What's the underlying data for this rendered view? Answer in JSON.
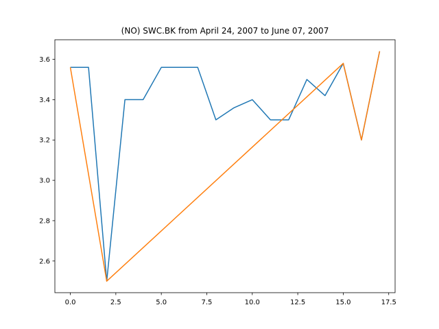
{
  "chart_data": {
    "type": "line",
    "title": "(NO) SWC.BK from April 24, 2007 to June 07, 2007",
    "xlabel": "",
    "ylabel": "",
    "xlim": [
      -0.85,
      17.85
    ],
    "ylim": [
      2.443,
      3.697
    ],
    "xticks": [
      0.0,
      2.5,
      5.0,
      7.5,
      10.0,
      12.5,
      15.0,
      17.5
    ],
    "xtick_labels": [
      "0.0",
      "2.5",
      "5.0",
      "7.5",
      "10.0",
      "12.5",
      "15.0",
      "17.5"
    ],
    "yticks": [
      2.6,
      2.8,
      3.0,
      3.2,
      3.4,
      3.6
    ],
    "ytick_labels": [
      "2.6",
      "2.8",
      "3.0",
      "3.2",
      "3.4",
      "3.6"
    ],
    "grid": false,
    "series": [
      {
        "color": "#1f77b4",
        "x": [
          0,
          1,
          2,
          3,
          4,
          5,
          6,
          7,
          8,
          9,
          10,
          11,
          12,
          13,
          14,
          15,
          16,
          17
        ],
        "y": [
          3.56,
          3.56,
          2.5,
          3.4,
          3.4,
          3.56,
          3.56,
          3.56,
          3.3,
          3.36,
          3.4,
          3.3,
          3.3,
          3.5,
          3.42,
          3.58,
          3.2,
          3.64
        ]
      },
      {
        "color": "#ff7f0e",
        "x": [
          0,
          2,
          15,
          16,
          17
        ],
        "y": [
          3.56,
          2.5,
          3.58,
          3.2,
          3.64
        ]
      }
    ]
  }
}
